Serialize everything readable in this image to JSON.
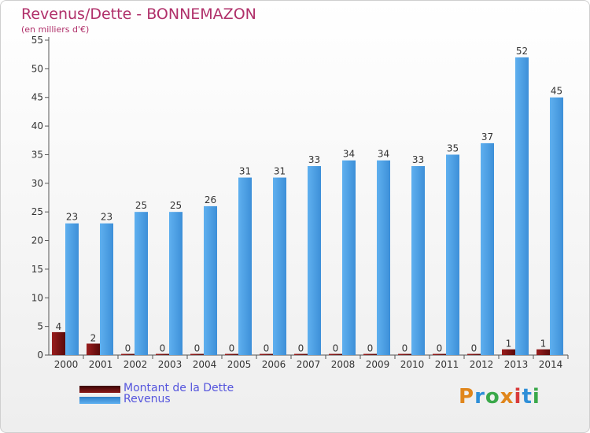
{
  "title": "Revenus/Dette - BONNEMAZON",
  "subtitle": "(en milliers d'€)",
  "logo": "Proxiti",
  "colors": {
    "dette": "#7a1010",
    "revenus": "#4a9ee6",
    "title": "#b0306a"
  },
  "chart_data": {
    "type": "bar",
    "categories": [
      "2000",
      "2001",
      "2002",
      "2003",
      "2004",
      "2005",
      "2006",
      "2007",
      "2008",
      "2009",
      "2010",
      "2011",
      "2012",
      "2013",
      "2014"
    ],
    "series": [
      {
        "name": "Montant de la Dette",
        "values": [
          4,
          2,
          0,
          0,
          0,
          0,
          0,
          0,
          0,
          0,
          0,
          0,
          0,
          1,
          1
        ]
      },
      {
        "name": "Revenus",
        "values": [
          23,
          23,
          25,
          25,
          26,
          31,
          31,
          33,
          34,
          34,
          33,
          35,
          37,
          52,
          45
        ]
      }
    ],
    "ylim": [
      0,
      55
    ],
    "yticks": [
      0,
      5,
      10,
      15,
      20,
      25,
      30,
      35,
      40,
      45,
      50,
      55
    ],
    "grid": false,
    "legend": "bottom-left"
  }
}
